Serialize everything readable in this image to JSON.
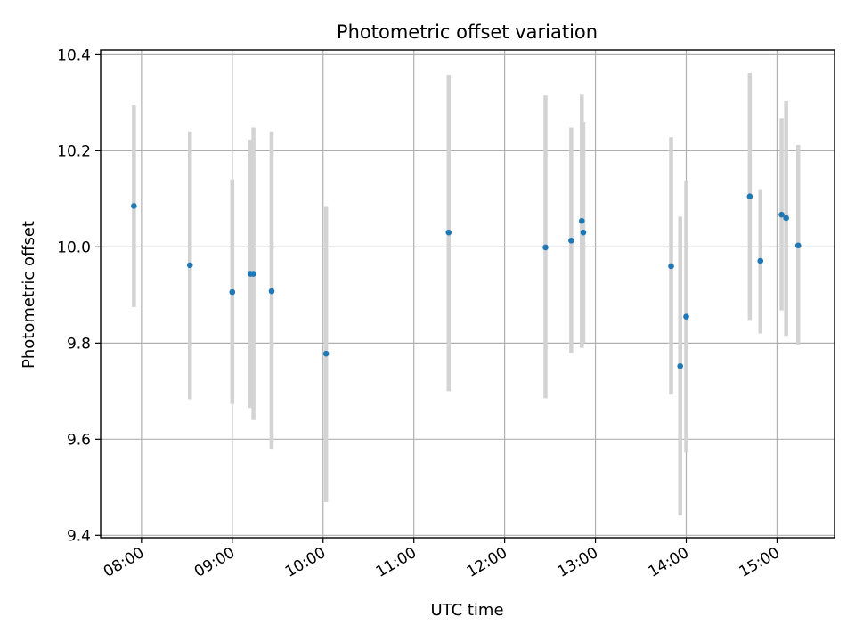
{
  "chart_data": {
    "type": "scatter",
    "title": "Photometric offset variation",
    "xlabel": "UTC time",
    "ylabel": "Photometric offset",
    "xlim": [
      "07:33",
      "15:38"
    ],
    "ylim": [
      9.395,
      10.41
    ],
    "x_ticks": [
      "08:00",
      "09:00",
      "10:00",
      "11:00",
      "12:00",
      "13:00",
      "14:00",
      "15:00"
    ],
    "y_ticks": [
      9.4,
      9.6,
      9.8,
      10.0,
      10.2,
      10.4
    ],
    "grid": true,
    "legend": "none",
    "colors": {
      "point": "#1f77b4",
      "errorbar": "#d3d3d3",
      "grid": "#b0b0b0"
    },
    "points": [
      {
        "x": "07:55",
        "y": 10.085,
        "low": 9.875,
        "high": 10.295
      },
      {
        "x": "08:32",
        "y": 9.962,
        "low": 9.683,
        "high": 10.24
      },
      {
        "x": "09:00",
        "y": 9.906,
        "low": 9.673,
        "high": 10.14
      },
      {
        "x": "09:12",
        "y": 9.944,
        "low": 9.665,
        "high": 10.223
      },
      {
        "x": "09:14",
        "y": 9.944,
        "low": 9.64,
        "high": 10.248
      },
      {
        "x": "09:26",
        "y": 9.908,
        "low": 9.58,
        "high": 10.24
      },
      {
        "x": "10:02",
        "y": 9.778,
        "low": 9.469,
        "high": 10.085
      },
      {
        "x": "11:23",
        "y": 10.03,
        "low": 9.7,
        "high": 10.358
      },
      {
        "x": "12:27",
        "y": 9.999,
        "low": 9.685,
        "high": 10.315
      },
      {
        "x": "12:44",
        "y": 10.013,
        "low": 9.779,
        "high": 10.248
      },
      {
        "x": "12:51",
        "y": 10.054,
        "low": 9.79,
        "high": 10.317
      },
      {
        "x": "12:52",
        "y": 10.03,
        "low": 9.8,
        "high": 10.26
      },
      {
        "x": "13:50",
        "y": 9.96,
        "low": 9.693,
        "high": 10.228
      },
      {
        "x": "13:56",
        "y": 9.752,
        "low": 9.441,
        "high": 10.063
      },
      {
        "x": "14:00",
        "y": 9.855,
        "low": 9.572,
        "high": 10.138
      },
      {
        "x": "14:42",
        "y": 10.105,
        "low": 9.848,
        "high": 10.362
      },
      {
        "x": "14:49",
        "y": 9.971,
        "low": 9.82,
        "high": 10.12
      },
      {
        "x": "15:03",
        "y": 10.067,
        "low": 9.868,
        "high": 10.267
      },
      {
        "x": "15:06",
        "y": 10.06,
        "low": 9.815,
        "high": 10.303
      },
      {
        "x": "15:14",
        "y": 10.003,
        "low": 9.795,
        "high": 10.212
      }
    ]
  }
}
